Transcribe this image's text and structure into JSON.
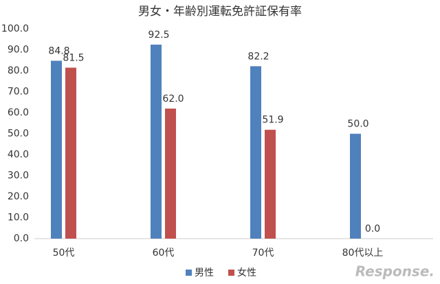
{
  "chart_data": {
    "type": "bar",
    "title": "男女・年齢別運転免許証保有率",
    "categories": [
      "50代",
      "60代",
      "70代",
      "80代以上"
    ],
    "series": [
      {
        "name": "男性",
        "color": "#4f81bd",
        "values": [
          84.8,
          92.5,
          82.2,
          50.0
        ],
        "value_labels": [
          "84.8",
          "92.5",
          "82.2",
          "50.0"
        ]
      },
      {
        "name": "女性",
        "color": "#c0504d",
        "values": [
          81.5,
          62.0,
          51.9,
          0.0
        ],
        "value_labels": [
          "81.5",
          "62.0",
          "51.9",
          "0.0"
        ]
      }
    ],
    "ylim": [
      0,
      100
    ],
    "yticks": [
      {
        "value": 0,
        "label": "0.0"
      },
      {
        "value": 10,
        "label": "10.0"
      },
      {
        "value": 20,
        "label": "20.0"
      },
      {
        "value": 30,
        "label": "30.0"
      },
      {
        "value": 40,
        "label": "40.0"
      },
      {
        "value": 50,
        "label": "50.0"
      },
      {
        "value": 60,
        "label": "60.0"
      },
      {
        "value": 70,
        "label": "70.0"
      },
      {
        "value": 80,
        "label": "80.0"
      },
      {
        "value": 90,
        "label": "90.0"
      },
      {
        "value": 100,
        "label": "100.0"
      }
    ],
    "grid": false,
    "legend": "bottom",
    "watermark": "Response."
  }
}
